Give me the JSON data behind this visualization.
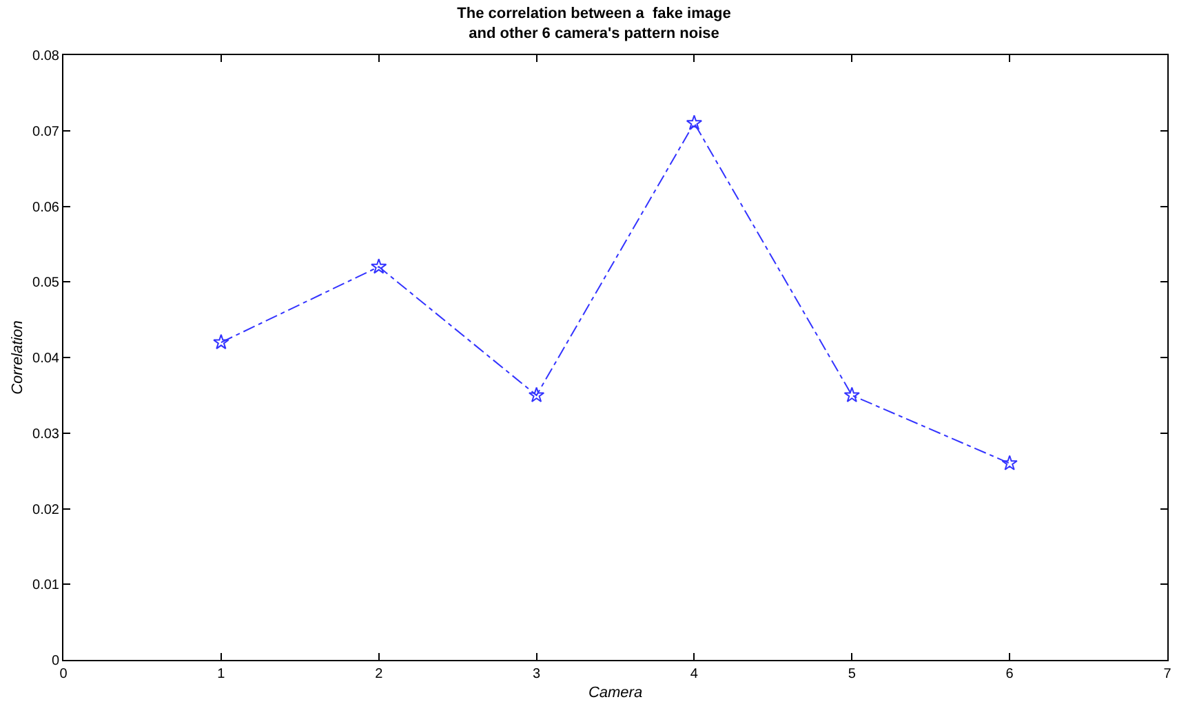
{
  "chart_data": {
    "type": "line",
    "title": "The correlation between a  fake image\nand other 6 camera's pattern noise",
    "xlabel": "Camera",
    "ylabel": "Correlation",
    "x": [
      1,
      2,
      3,
      4,
      5,
      6
    ],
    "series": [
      {
        "color": "#3333ff",
        "values": [
          0.042,
          0.052,
          0.035,
          0.071,
          0.035,
          0.026
        ]
      }
    ],
    "xlim": [
      0,
      7
    ],
    "xticks": [
      0,
      1,
      2,
      3,
      4,
      5,
      6,
      7
    ],
    "ylim": [
      0,
      0.08
    ],
    "yticks": [
      {
        "value": 0,
        "label": "0"
      },
      {
        "value": 0.01,
        "label": "0.01"
      },
      {
        "value": 0.02,
        "label": "0.02"
      },
      {
        "value": 0.03,
        "label": "0.03"
      },
      {
        "value": 0.04,
        "label": "0.04"
      },
      {
        "value": 0.05,
        "label": "0.05"
      },
      {
        "value": 0.06,
        "label": "0.06"
      },
      {
        "value": 0.07,
        "label": "0.07"
      },
      {
        "value": 0.08,
        "label": "0.08"
      }
    ],
    "marker": "star",
    "line_style": "dashed"
  }
}
